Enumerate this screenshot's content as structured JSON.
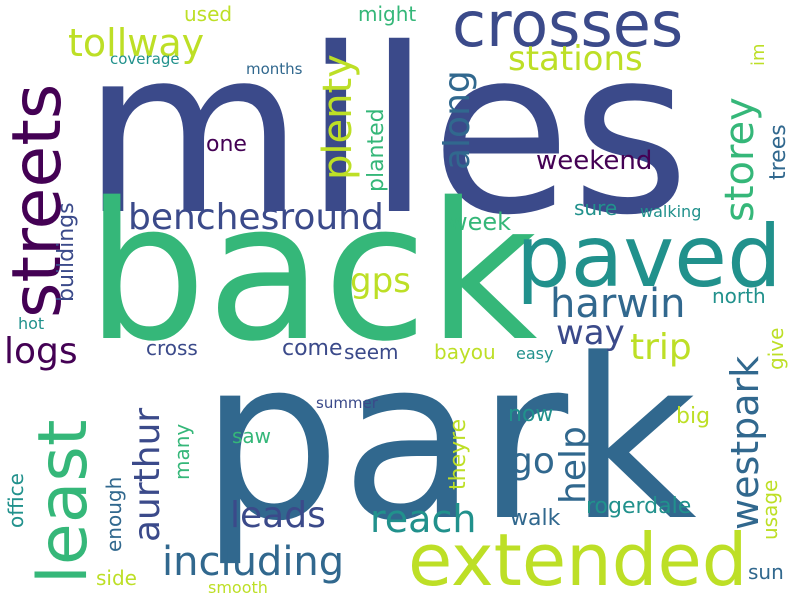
{
  "words": {
    "miles": "miles",
    "back": "back",
    "park": "park",
    "streets": "streets",
    "least": "least",
    "crosses": "crosses",
    "paved": "paved",
    "extended": "extended",
    "tollway": "tollway",
    "used": "used",
    "might": "might",
    "stations": "stations",
    "coverage": "coverage",
    "months": "months",
    "plenty": "plenty",
    "planted": "planted",
    "along": "along",
    "storey": "storey",
    "im": "im",
    "one": "one",
    "weekend": "weekend",
    "trees": "trees",
    "buildings": "buildings",
    "benchesround": "benchesround",
    "sure": "sure",
    "walking": "walking",
    "week": "week",
    "gps": "gps",
    "harwin": "harwin",
    "north": "north",
    "hot": "hot",
    "westpark": "westpark",
    "way": "way",
    "trip": "trip",
    "give": "give",
    "logs": "logs",
    "cross": "cross",
    "come": "come",
    "seem": "seem",
    "bayou": "bayou",
    "easy": "easy",
    "summer": "summer",
    "aurthur": "aurthur",
    "help": "help",
    "now": "now",
    "big": "big",
    "saw": "saw",
    "many": "many",
    "office": "office",
    "enough": "enough",
    "go": "go",
    "theyre": "theyre",
    "leads": "leads",
    "reach": "reach",
    "walk": "walk",
    "rogerdale": "rogerdale",
    "usage": "usage",
    "including": "including",
    "side": "side",
    "smooth": "smooth",
    "sun": "sun"
  },
  "palette": {
    "dark_purple": "#440154",
    "indigo": "#3b4a8a",
    "blue": "#31688e",
    "teal": "#21918c",
    "green": "#35b779",
    "lime": "#bddf26"
  }
}
